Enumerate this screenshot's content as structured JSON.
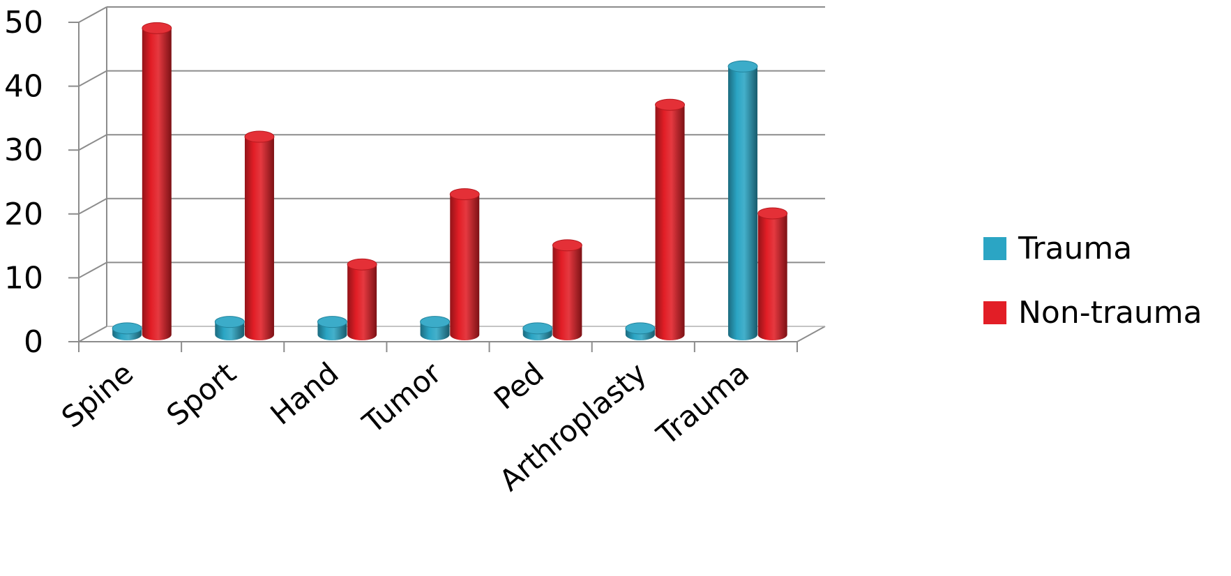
{
  "chart_data": {
    "type": "bar",
    "style": "3d-cylinder",
    "categories": [
      "Spine",
      "Sport",
      "Hand",
      "Tumor",
      "Ped",
      "Arthroplasty",
      "Trauma"
    ],
    "series": [
      {
        "name": "Trauma",
        "values": [
          1,
          2,
          2,
          2,
          1,
          1,
          42
        ],
        "color": "#2ba5c4"
      },
      {
        "name": "Non-trauma",
        "values": [
          48,
          31,
          11,
          22,
          14,
          36,
          19
        ],
        "color": "#e21e26"
      }
    ],
    "yticks": [
      "0",
      "10",
      "20",
      "30",
      "40",
      "50"
    ],
    "ylim": [
      0,
      50
    ],
    "grid": true,
    "legend_position": "right",
    "title": "",
    "xlabel": "",
    "ylabel": ""
  }
}
